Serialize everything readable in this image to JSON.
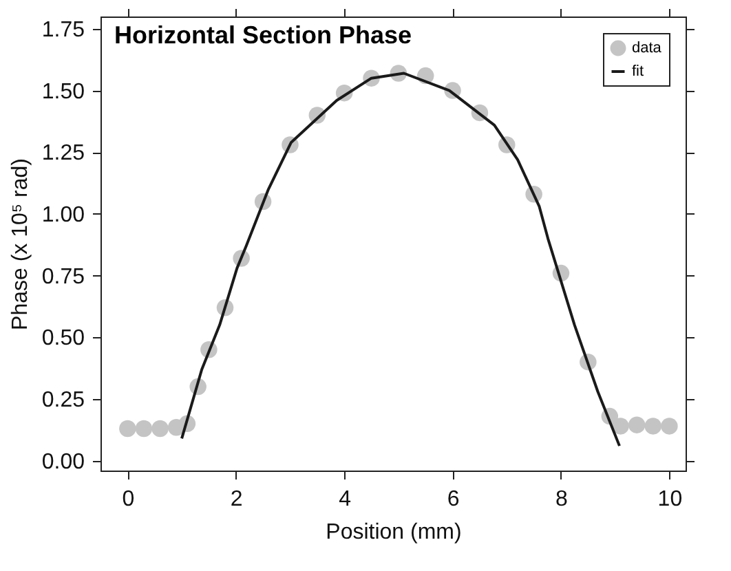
{
  "chart_data": {
    "type": "scatter",
    "title": "Horizontal Section Phase",
    "xlabel": "Position (mm)",
    "ylabel": "Phase (x 10⁵ rad)",
    "xlim": [
      -0.5,
      10.3
    ],
    "xticks": [
      0,
      2,
      4,
      6,
      8,
      10
    ],
    "ylim": [
      -0.04,
      1.8
    ],
    "yticks": [
      {
        "value": 0,
        "label": "0.00"
      },
      {
        "value": 0.25,
        "label": "0.25"
      },
      {
        "value": 0.5,
        "label": "0.50"
      },
      {
        "value": 0.75,
        "label": "0.75"
      },
      {
        "value": 1,
        "label": "1.00"
      },
      {
        "value": 1.25,
        "label": "1.25"
      },
      {
        "value": 1.5,
        "label": "1.50"
      },
      {
        "value": 1.75,
        "label": "1.75"
      }
    ],
    "grid": false,
    "legend": "top right",
    "series": [
      {
        "name": "data",
        "marker": "circle",
        "color": "#c4c4c4",
        "x": [
          0,
          0.3,
          0.6,
          0.9,
          1.1,
          1.3,
          1.5,
          1.8,
          2.1,
          2.5,
          3.0,
          3.5,
          4.0,
          4.5,
          5.0,
          5.5,
          6.0,
          6.5,
          7.0,
          7.5,
          8.0,
          8.5,
          8.9,
          9.1,
          9.4,
          9.7,
          10.0
        ],
        "values": [
          0.13,
          0.13,
          0.13,
          0.135,
          0.15,
          0.3,
          0.45,
          0.62,
          0.82,
          1.05,
          1.28,
          1.4,
          1.49,
          1.55,
          1.57,
          1.56,
          1.5,
          1.41,
          1.28,
          1.08,
          0.76,
          0.4,
          0.18,
          0.14,
          0.145,
          0.14,
          0.14
        ]
      },
      {
        "name": "fit",
        "type": "line",
        "marker": "none",
        "line_style": "solid",
        "color": "#1a1a1a",
        "x": [
          1.0,
          1.37,
          1.7,
          2.02,
          2.19,
          2.6,
          3.02,
          3.86,
          4.5,
          5.1,
          5.94,
          6.77,
          7.2,
          7.6,
          7.76,
          8.25,
          8.68,
          9.08
        ],
        "values": [
          0.09,
          0.37,
          0.55,
          0.78,
          0.87,
          1.1,
          1.29,
          1.46,
          1.55,
          1.57,
          1.5,
          1.36,
          1.22,
          1.03,
          0.9,
          0.55,
          0.28,
          0.06
        ]
      }
    ]
  }
}
